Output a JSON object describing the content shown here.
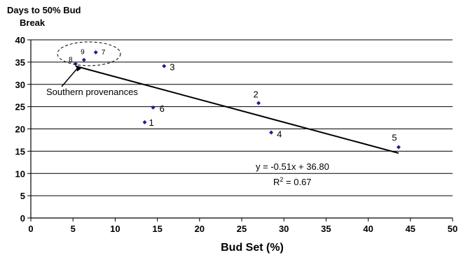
{
  "chart_data": {
    "type": "scatter",
    "title": "",
    "ylabel_line1": "Days to 50% Bud",
    "ylabel_line2": "Break",
    "xlabel": "Bud Set (%)",
    "xlim": [
      0,
      50
    ],
    "ylim": [
      0,
      40
    ],
    "xticks": [
      0,
      5,
      10,
      15,
      20,
      25,
      30,
      35,
      40,
      45,
      50
    ],
    "yticks": [
      0,
      5,
      10,
      15,
      20,
      25,
      30,
      35,
      40
    ],
    "grid": "horizontal",
    "point_color": "#1f1f8f",
    "points": [
      {
        "label": "1",
        "x": 13.5,
        "y": 21.5
      },
      {
        "label": "2",
        "x": 27.0,
        "y": 25.8
      },
      {
        "label": "3",
        "x": 15.8,
        "y": 34.1
      },
      {
        "label": "4",
        "x": 28.5,
        "y": 19.2
      },
      {
        "label": "5",
        "x": 43.6,
        "y": 15.9
      },
      {
        "label": "6",
        "x": 14.5,
        "y": 24.8
      },
      {
        "label": "7",
        "x": 7.7,
        "y": 37.2
      },
      {
        "label": "8",
        "x": 5.3,
        "y": 34.6
      },
      {
        "label": "9",
        "x": 6.3,
        "y": 35.5
      }
    ],
    "trendline": {
      "x": [
        5.3,
        43.6
      ],
      "y": [
        34.1,
        14.56
      ]
    },
    "equation": "y = -0.51x + 36.80",
    "r2_prefix": "R",
    "r2_sup": "2",
    "r2_value": " = 0.67",
    "annotation": "Southern provenances"
  }
}
